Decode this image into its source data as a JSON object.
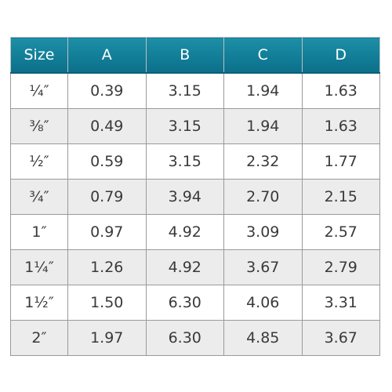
{
  "table": {
    "headers": [
      "Size",
      "A",
      "B",
      "C",
      "D"
    ],
    "rows": [
      [
        "¼″",
        "0.39",
        "3.15",
        "1.94",
        "1.63"
      ],
      [
        "⅜″",
        "0.49",
        "3.15",
        "1.94",
        "1.63"
      ],
      [
        "½″",
        "0.59",
        "3.15",
        "2.32",
        "1.77"
      ],
      [
        "¾″",
        "0.79",
        "3.94",
        "2.70",
        "2.15"
      ],
      [
        "1″",
        "0.97",
        "4.92",
        "3.09",
        "2.57"
      ],
      [
        "1¼″",
        "1.26",
        "4.92",
        "3.67",
        "2.79"
      ],
      [
        "1½″",
        "1.50",
        "6.30",
        "4.06",
        "3.31"
      ],
      [
        "2″",
        "1.97",
        "6.30",
        "4.85",
        "3.67"
      ]
    ]
  },
  "colors": {
    "header_bg": "#137f99",
    "header_text": "#ffffff",
    "row_alt_bg": "#ececed",
    "border": "#9a9a9a"
  }
}
